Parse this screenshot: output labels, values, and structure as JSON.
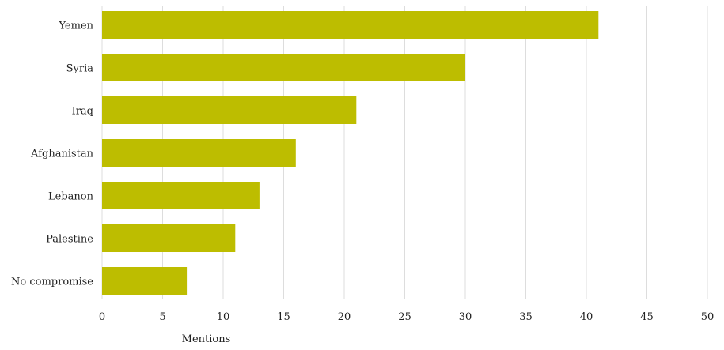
{
  "chart_data": {
    "type": "bar",
    "orientation": "horizontal",
    "categories": [
      "Yemen",
      "Syria",
      "Iraq",
      "Afghanistan",
      "Lebanon",
      "Palestine",
      "No compromise"
    ],
    "values": [
      41,
      30,
      21,
      16,
      13,
      11,
      7
    ],
    "xlabel": "Mentions",
    "ylabel": "",
    "xlim": [
      0,
      50
    ],
    "xticks": [
      0,
      5,
      10,
      15,
      20,
      25,
      30,
      35,
      40,
      45,
      50
    ],
    "grid": "vertical",
    "legend": "none",
    "colors": {
      "bar": "#bdbd00",
      "grid": "#dddddd",
      "text": "#222222"
    }
  }
}
